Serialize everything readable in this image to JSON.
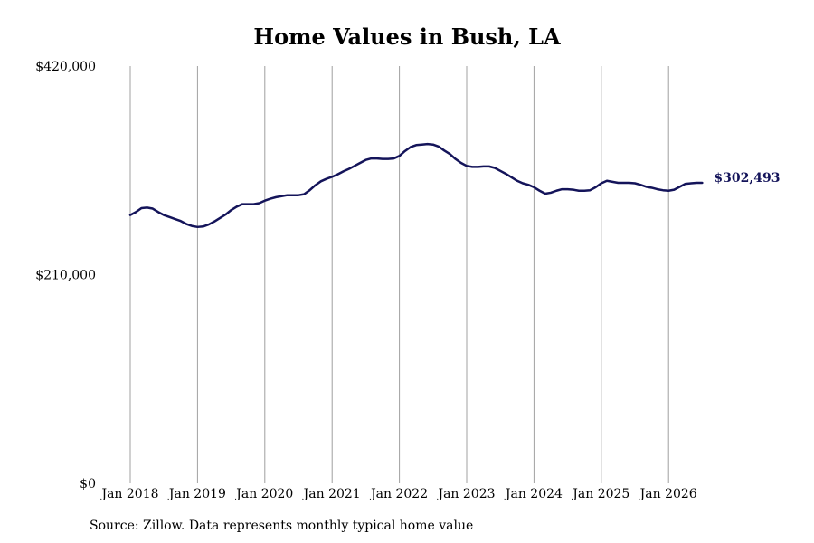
{
  "source_note": "Source: Zillow. Data represents monthly typical home value",
  "colors": {
    "line": "#14145a",
    "grid": "#a0a0a0",
    "text": "#000000"
  },
  "chart_data": {
    "type": "line",
    "title": "Home Values in Bush, LA",
    "xlabel": "",
    "ylabel": "",
    "ylim": [
      0,
      420000
    ],
    "y_ticks": [
      0,
      210000,
      420000
    ],
    "y_tick_labels": [
      "$0",
      "$210,000",
      "$420,000"
    ],
    "x_ticks": [
      "2018-01",
      "2019-01",
      "2020-01",
      "2021-01",
      "2022-01",
      "2023-01",
      "2024-01",
      "2025-01",
      "2026-01"
    ],
    "x_tick_labels": [
      "Jan 2018",
      "Jan 2019",
      "Jan 2020",
      "Jan 2021",
      "Jan 2022",
      "Jan 2023",
      "Jan 2024",
      "Jan 2025",
      "Jan 2026"
    ],
    "x_range": [
      "2018-01",
      "2026-07"
    ],
    "grid": "vertical",
    "end_label": "$302,493",
    "series": [
      {
        "x": [
          "2018-01",
          "2018-02",
          "2018-03",
          "2018-04",
          "2018-05",
          "2018-06",
          "2018-07",
          "2018-08",
          "2018-09",
          "2018-10",
          "2018-11",
          "2018-12",
          "2019-01",
          "2019-02",
          "2019-03",
          "2019-04",
          "2019-05",
          "2019-06",
          "2019-07",
          "2019-08",
          "2019-09",
          "2019-10",
          "2019-11",
          "2019-12",
          "2020-01",
          "2020-02",
          "2020-03",
          "2020-04",
          "2020-05",
          "2020-06",
          "2020-07",
          "2020-08",
          "2020-09",
          "2020-10",
          "2020-11",
          "2020-12",
          "2021-01",
          "2021-02",
          "2021-03",
          "2021-04",
          "2021-05",
          "2021-06",
          "2021-07",
          "2021-08",
          "2021-09",
          "2021-10",
          "2021-11",
          "2021-12",
          "2022-01",
          "2022-02",
          "2022-03",
          "2022-04",
          "2022-05",
          "2022-06",
          "2022-07",
          "2022-08",
          "2022-09",
          "2022-10",
          "2022-11",
          "2022-12",
          "2023-01",
          "2023-02",
          "2023-03",
          "2023-04",
          "2023-05",
          "2023-06",
          "2023-07",
          "2023-08",
          "2023-09",
          "2023-10",
          "2023-11",
          "2023-12",
          "2024-01",
          "2024-02",
          "2024-03",
          "2024-04",
          "2024-05",
          "2024-06",
          "2024-07",
          "2024-08",
          "2024-09",
          "2024-10",
          "2024-11",
          "2024-12",
          "2025-01",
          "2025-02",
          "2025-03",
          "2025-04",
          "2025-05",
          "2025-06",
          "2025-07",
          "2025-08",
          "2025-09",
          "2025-10",
          "2025-11",
          "2025-12",
          "2026-01",
          "2026-02",
          "2026-03",
          "2026-04",
          "2026-05",
          "2026-06",
          "2026-07"
        ],
        "values": [
          270000,
          273000,
          277000,
          277500,
          276500,
          273000,
          270000,
          268000,
          266000,
          264000,
          261000,
          259000,
          258000,
          258500,
          260500,
          263500,
          267000,
          270500,
          275000,
          278500,
          281000,
          281000,
          281000,
          282000,
          284500,
          286500,
          288000,
          289000,
          290000,
          290000,
          290000,
          291000,
          295000,
          300000,
          304000,
          306500,
          308500,
          311000,
          314000,
          316500,
          319500,
          322500,
          325500,
          327000,
          327000,
          326500,
          326500,
          327000,
          329500,
          334500,
          338500,
          340500,
          341000,
          341500,
          341000,
          339000,
          335000,
          331500,
          326500,
          322500,
          319500,
          318500,
          318500,
          319000,
          319000,
          317500,
          314500,
          311500,
          308000,
          304500,
          302000,
          300500,
          298000,
          294500,
          291500,
          292500,
          294500,
          296000,
          296000,
          295500,
          294500,
          294500,
          295000,
          298000,
          302000,
          304500,
          303500,
          302500,
          302500,
          302500,
          302000,
          300500,
          298500,
          297500,
          296000,
          295000,
          294500,
          295500,
          298500,
          301500,
          302000,
          302500,
          302493
        ]
      }
    ]
  }
}
